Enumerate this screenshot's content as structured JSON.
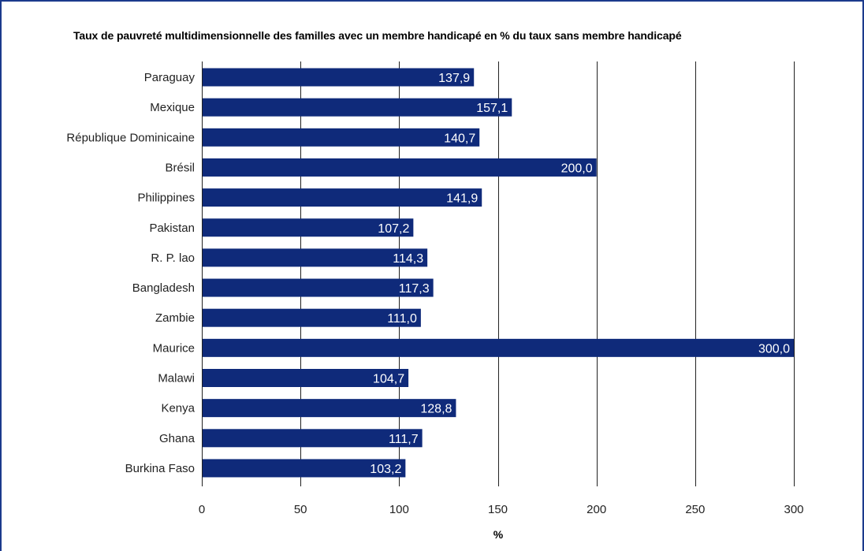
{
  "chart_data": {
    "type": "bar",
    "orientation": "horizontal",
    "title": "Taux de pauvreté multidimensionnelle des familles avec un membre handicapé en % du taux sans membre handicapé",
    "xlabel": "%",
    "ylabel": "",
    "xlim": [
      0,
      300
    ],
    "ticks": [
      "0",
      "50",
      "100",
      "150",
      "200",
      "250",
      "300"
    ],
    "grid": true,
    "bar_color": "#0f2a7a",
    "categories": [
      "Paraguay",
      "Mexique",
      "République Dominicaine",
      "Brésil",
      "Philippines",
      "Pakistan",
      "R. P. lao",
      "Bangladesh",
      "Zambie",
      "Maurice",
      "Malawi",
      "Kenya",
      "Ghana",
      "Burkina Faso"
    ],
    "values": [
      137.9,
      157.1,
      140.7,
      200.0,
      141.9,
      107.2,
      114.3,
      117.3,
      111.0,
      300.0,
      104.7,
      128.8,
      111.7,
      103.2
    ],
    "value_labels": [
      "137,9",
      "157,1",
      "140,7",
      "200,0",
      "141,9",
      "107,2",
      "114,3",
      "117,3",
      "111,0",
      "300,0",
      "104,7",
      "128,8",
      "111,7",
      "103,2"
    ]
  }
}
